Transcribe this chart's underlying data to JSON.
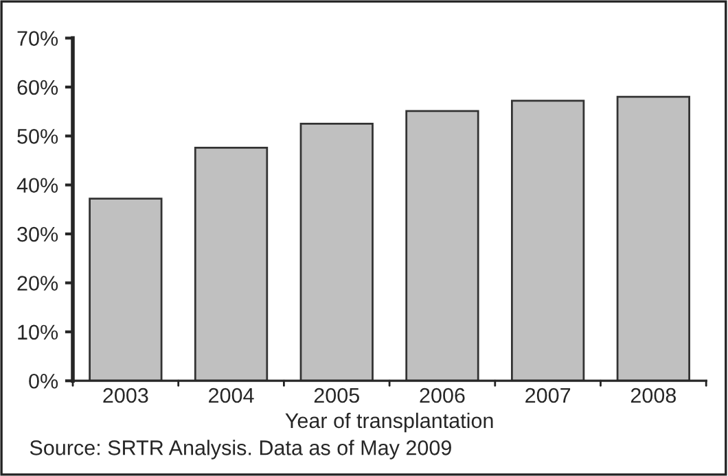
{
  "chart_data": {
    "type": "bar",
    "xlabel": "Year of transplantation",
    "categories": [
      "2003",
      "2004",
      "2005",
      "2006",
      "2007",
      "2008"
    ],
    "values": [
      37.2,
      47.6,
      52.5,
      55.1,
      57.2,
      58.0
    ],
    "color": "#c0c0c0",
    "ylim": [
      0,
      70
    ],
    "yticks": [
      {
        "value": 0,
        "label": "0%"
      },
      {
        "value": 10,
        "label": "10%"
      },
      {
        "value": 20,
        "label": "20%"
      },
      {
        "value": 30,
        "label": "30%"
      },
      {
        "value": 40,
        "label": "40%"
      },
      {
        "value": 50,
        "label": "50%"
      },
      {
        "value": 60,
        "label": "60%"
      },
      {
        "value": 70,
        "label": "70%"
      }
    ],
    "grid": false,
    "annotations": [
      "Source: SRTR Analysis. Data as of May 2009"
    ]
  }
}
